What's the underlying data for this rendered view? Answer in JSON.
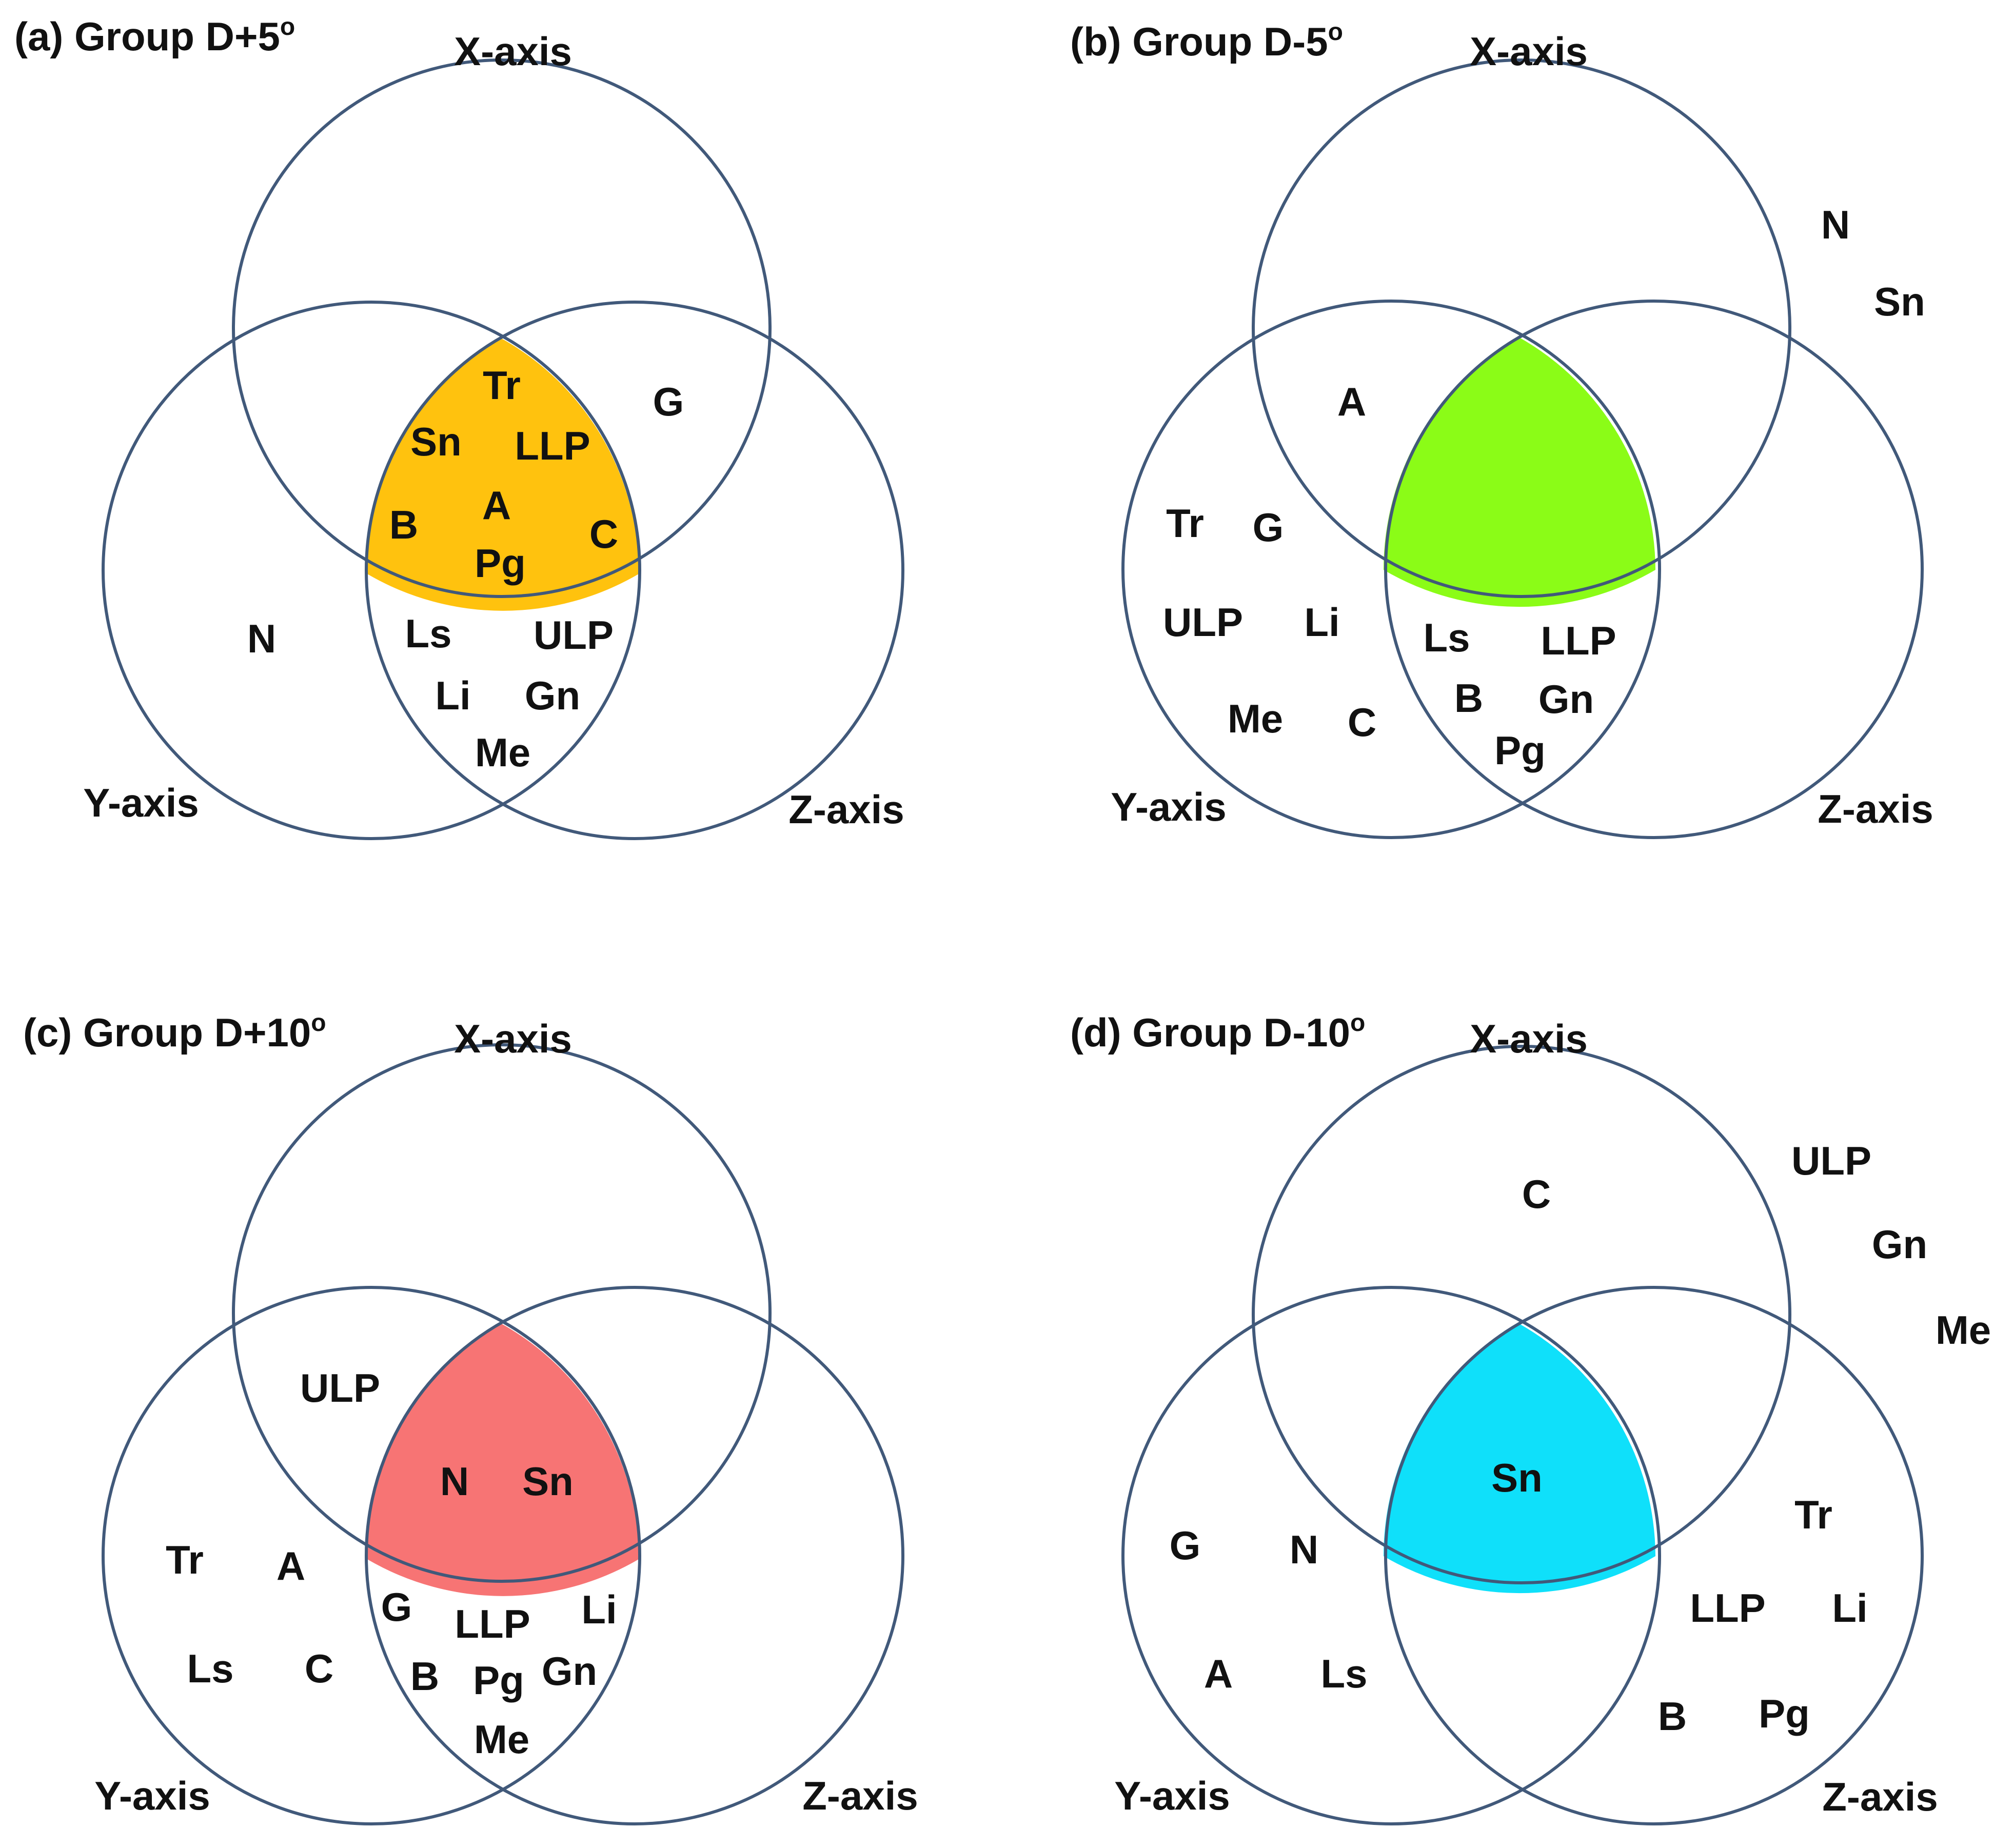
{
  "panels": [
    {
      "id": "a",
      "title": "(a) Group D+5",
      "title_sup": "o",
      "highlight_color": "#FFC20E",
      "axes": {
        "x": "X-axis",
        "y": "Y-axis",
        "z": "Z-axis"
      },
      "items": [
        "Tr",
        "G",
        "Sn",
        "LLP",
        "A",
        "B",
        "C",
        "Pg",
        "N",
        "Ls",
        "ULP",
        "Li",
        "Gn",
        "Me"
      ]
    },
    {
      "id": "b",
      "title": "(b) Group D-5",
      "title_sup": "o",
      "highlight_color": "#8BFC17",
      "axes": {
        "x": "X-axis",
        "y": "Y-axis",
        "z": "Z-axis"
      },
      "items": [
        "N",
        "Sn",
        "A",
        "Tr",
        "G",
        "ULP",
        "Li",
        "Me",
        "C",
        "Ls",
        "LLP",
        "B",
        "Gn",
        "Pg"
      ]
    },
    {
      "id": "c",
      "title": "(c) Group D+10",
      "title_sup": "o",
      "highlight_color": "#F77474",
      "axes": {
        "x": "X-axis",
        "y": "Y-axis",
        "z": "Z-axis"
      },
      "items": [
        "ULP",
        "N",
        "Sn",
        "Tr",
        "A",
        "Ls",
        "C",
        "G",
        "LLP",
        "Li",
        "B",
        "Pg",
        "Gn",
        "Me"
      ]
    },
    {
      "id": "d",
      "title": "(d) Group D-10",
      "title_sup": "o",
      "highlight_color": "#0FE0FA",
      "axes": {
        "x": "X-axis",
        "y": "Y-axis",
        "z": "Z-axis"
      },
      "items": [
        "ULP",
        "C",
        "Gn",
        "Me",
        "Sn",
        "Tr",
        "G",
        "N",
        "LLP",
        "Li",
        "A",
        "Ls",
        "B",
        "Pg"
      ]
    }
  ]
}
